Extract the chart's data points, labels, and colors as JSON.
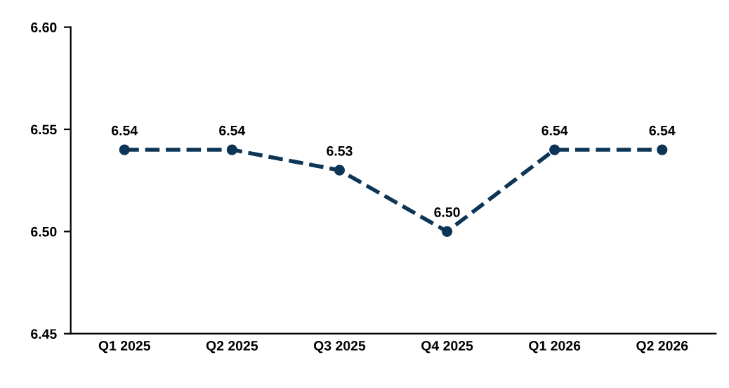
{
  "chart_data": {
    "type": "line",
    "categories": [
      "Q1 2025",
      "Q2 2025",
      "Q3 2025",
      "Q4 2025",
      "Q1 2026",
      "Q2 2026"
    ],
    "values": [
      6.54,
      6.54,
      6.53,
      6.5,
      6.54,
      6.54
    ],
    "color": "#0d3556",
    "ylim": [
      6.45,
      6.6
    ],
    "yticks": [
      {
        "value": 6.45,
        "label": "6.45"
      },
      {
        "value": 6.5,
        "label": "6.50"
      },
      {
        "value": 6.55,
        "label": "6.55"
      },
      {
        "value": 6.6,
        "label": "6.60"
      }
    ],
    "value_labels": [
      "6.54",
      "6.54",
      "6.53",
      "6.50",
      "6.54",
      "6.54"
    ],
    "marker": "circle",
    "line_style": "dashed",
    "grid": false,
    "legend": false
  }
}
